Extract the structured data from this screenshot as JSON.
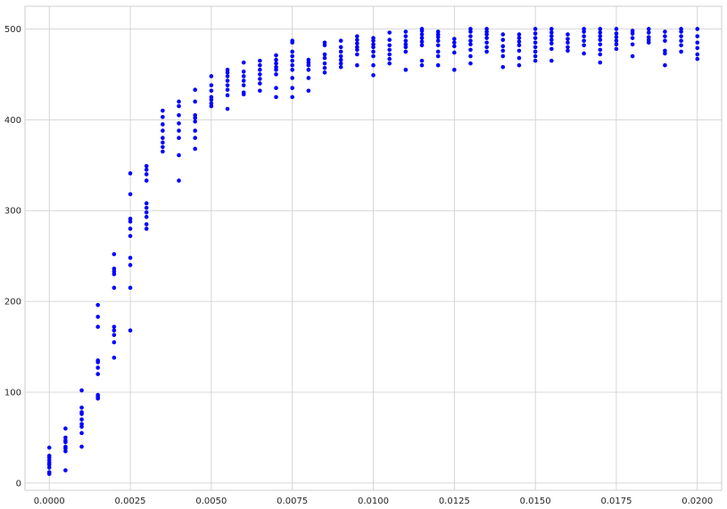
{
  "colors": {
    "point": "#0000ff",
    "grid": "#cccccc",
    "frame": "#cccccc",
    "background": "#ffffff",
    "text": "#262626"
  },
  "chart_data": {
    "type": "scatter",
    "title": "",
    "xlabel": "",
    "ylabel": "",
    "xlim": [
      -0.00075,
      0.02075
    ],
    "ylim": [
      -8,
      525
    ],
    "grid": true,
    "legend": "none",
    "xticks": [
      0.0,
      0.0025,
      0.005,
      0.0075,
      0.01,
      0.0125,
      0.015,
      0.0175,
      0.02
    ],
    "xtick_labels": [
      "0.0000",
      "0.0025",
      "0.0050",
      "0.0075",
      "0.0100",
      "0.0125",
      "0.0150",
      "0.0175",
      "0.0200"
    ],
    "yticks": [
      0,
      100,
      200,
      300,
      400,
      500
    ],
    "ytick_labels": [
      "0",
      "100",
      "200",
      "300",
      "400",
      "500"
    ],
    "series": [
      {
        "color": "#0000ff",
        "groups": [
          {
            "x": 0.0,
            "y": [
              10,
              12,
              17,
              20,
              22,
              25,
              28,
              30,
              39
            ]
          },
          {
            "x": 0.0005,
            "y": [
              14,
              35,
              38,
              40,
              45,
              47,
              50,
              60
            ]
          },
          {
            "x": 0.001,
            "y": [
              40,
              55,
              62,
              65,
              70,
              76,
              78,
              83,
              102
            ]
          },
          {
            "x": 0.0015,
            "y": [
              93,
              95,
              97,
              120,
              127,
              133,
              135,
              172,
              183,
              196
            ]
          },
          {
            "x": 0.002,
            "y": [
              138,
              155,
              163,
              168,
              172,
              215,
              230,
              233,
              236,
              252
            ]
          },
          {
            "x": 0.0025,
            "y": [
              168,
              215,
              240,
              248,
              272,
              280,
              288,
              291,
              318,
              341
            ]
          },
          {
            "x": 0.003,
            "y": [
              280,
              285,
              293,
              298,
              303,
              308,
              333,
              340,
              345,
              349
            ]
          },
          {
            "x": 0.0035,
            "y": [
              365,
              370,
              375,
              380,
              388,
              395,
              403,
              410
            ]
          },
          {
            "x": 0.004,
            "y": [
              333,
              361,
              380,
              388,
              396,
              405,
              415,
              420
            ]
          },
          {
            "x": 0.0045,
            "y": [
              368,
              380,
              388,
              398,
              402,
              405,
              420,
              433
            ]
          },
          {
            "x": 0.005,
            "y": [
              415,
              418,
              422,
              425,
              432,
              438,
              448
            ]
          },
          {
            "x": 0.0055,
            "y": [
              412,
              427,
              433,
              438,
              443,
              448,
              452,
              455
            ]
          },
          {
            "x": 0.006,
            "y": [
              428,
              430,
              438,
              443,
              448,
              453,
              463
            ]
          },
          {
            "x": 0.0065,
            "y": [
              432,
              440,
              445,
              450,
              455,
              460,
              465
            ]
          },
          {
            "x": 0.007,
            "y": [
              425,
              435,
              450,
              455,
              458,
              462,
              466,
              471
            ]
          },
          {
            "x": 0.0075,
            "y": [
              425,
              435,
              446,
              455,
              460,
              465,
              470,
              475,
              485,
              487
            ]
          },
          {
            "x": 0.008,
            "y": [
              432,
              446,
              455,
              460,
              463,
              466
            ]
          },
          {
            "x": 0.0085,
            "y": [
              452,
              457,
              462,
              468,
              472,
              482,
              485
            ]
          },
          {
            "x": 0.009,
            "y": [
              458,
              462,
              466,
              470,
              475,
              480,
              487
            ]
          },
          {
            "x": 0.0095,
            "y": [
              460,
              472,
              477,
              480,
              484,
              488,
              492
            ]
          },
          {
            "x": 0.01,
            "y": [
              449,
              460,
              470,
              475,
              480,
              483,
              487,
              490
            ]
          },
          {
            "x": 0.0105,
            "y": [
              462,
              467,
              472,
              477,
              482,
              488,
              496
            ]
          },
          {
            "x": 0.011,
            "y": [
              455,
              475,
              480,
              483,
              487,
              492,
              497
            ]
          },
          {
            "x": 0.0115,
            "y": [
              460,
              465,
              482,
              486,
              490,
              494,
              498,
              500
            ]
          },
          {
            "x": 0.012,
            "y": [
              460,
              470,
              475,
              482,
              487,
              491,
              494,
              497
            ]
          },
          {
            "x": 0.0125,
            "y": [
              455,
              474,
              481,
              485,
              489
            ]
          },
          {
            "x": 0.013,
            "y": [
              462,
              470,
              477,
              483,
              487,
              492,
              497,
              500
            ]
          },
          {
            "x": 0.0135,
            "y": [
              475,
              480,
              485,
              490,
              494,
              497,
              500
            ]
          },
          {
            "x": 0.014,
            "y": [
              458,
              470,
              476,
              481,
              488,
              494
            ]
          },
          {
            "x": 0.0145,
            "y": [
              460,
              468,
              476,
              482,
              486,
              490,
              494
            ]
          },
          {
            "x": 0.015,
            "y": [
              465,
              470,
              475,
              480,
              485,
              490,
              495,
              500
            ]
          },
          {
            "x": 0.0155,
            "y": [
              465,
              478,
              484,
              488,
              492,
              496,
              500
            ]
          },
          {
            "x": 0.016,
            "y": [
              476,
              480,
              485,
              489,
              494
            ]
          },
          {
            "x": 0.0165,
            "y": [
              473,
              482,
              487,
              492,
              497,
              500
            ]
          },
          {
            "x": 0.017,
            "y": [
              463,
              472,
              477,
              483,
              488,
              492,
              496,
              500
            ]
          },
          {
            "x": 0.0175,
            "y": [
              478,
              483,
              487,
              491,
              495,
              500
            ]
          },
          {
            "x": 0.018,
            "y": [
              470,
              483,
              490,
              495,
              498
            ]
          },
          {
            "x": 0.0185,
            "y": [
              485,
              488,
              491,
              496,
              500
            ]
          },
          {
            "x": 0.019,
            "y": [
              460,
              473,
              476,
              487,
              492,
              497
            ]
          },
          {
            "x": 0.0195,
            "y": [
              475,
              482,
              487,
              492,
              497,
              500
            ]
          },
          {
            "x": 0.02,
            "y": [
              467,
              472,
              479,
              485,
              492,
              500
            ]
          }
        ]
      }
    ]
  }
}
